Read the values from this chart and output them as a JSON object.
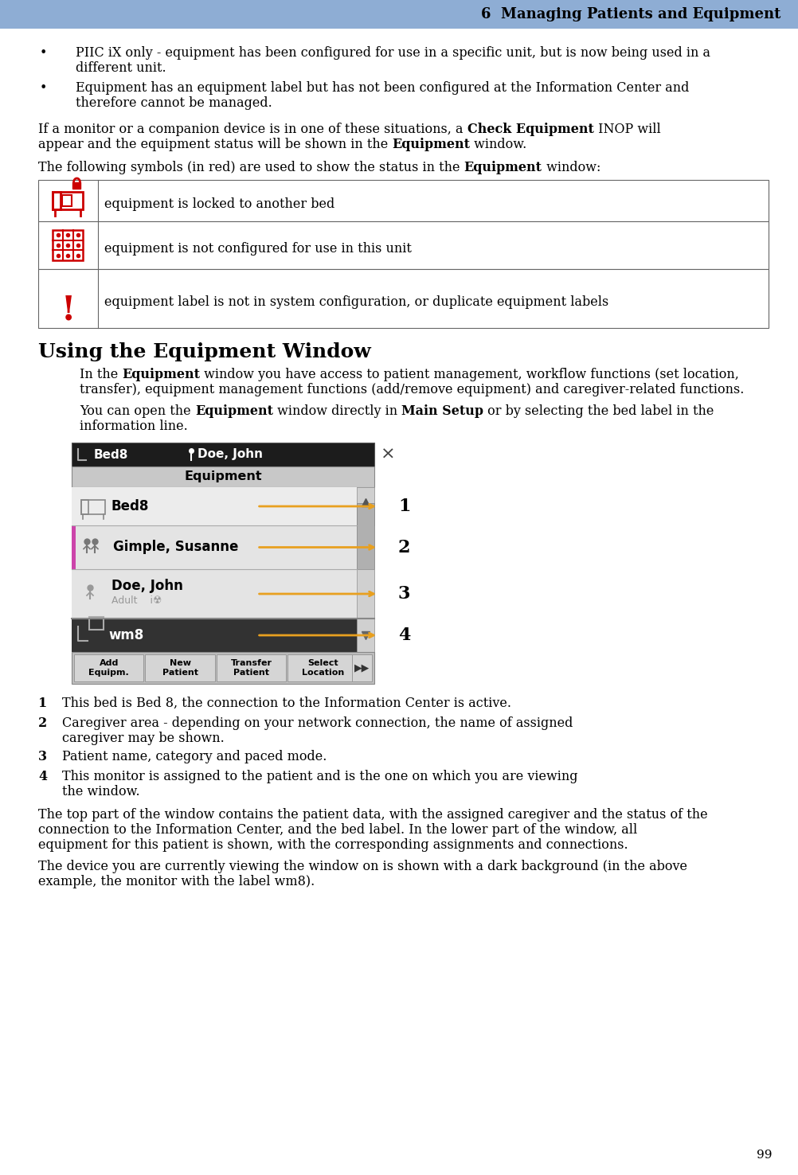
{
  "header_text": "6  Managing Patients and Equipment",
  "header_bg": "#8EADD4",
  "page_bg": "#FFFFFF",
  "bullet1_line1": "PIIC iX only - equipment has been configured for use in a specific unit, but is now being used in a",
  "bullet1_line2": "different unit.",
  "bullet2_line1": "Equipment has an equipment label but has not been configured at the Information Center and",
  "bullet2_line2": "therefore cannot be managed.",
  "table_rows": [
    "equipment is locked to another bed",
    "equipment is not configured for use in this unit",
    "equipment label is not in system configuration, or duplicate equipment labels"
  ],
  "section_title": "Using the Equipment Window",
  "note1_num": "1",
  "note1_text": "This bed is Bed 8, the connection to the Information Center is active.",
  "note2_num": "2",
  "note2_text": "Caregiver area - depending on your network connection, the name of assigned caregiver may be shown.",
  "note3_num": "3",
  "note3_text": "Patient name, category and paced mode.",
  "note4_num": "4",
  "note4_text": "This monitor is assigned to the patient and is the one on which you are viewing the window.",
  "bottom_para1_l1": "The top part of the window contains the patient data, with the assigned caregiver and the status of the",
  "bottom_para1_l2": "connection to the Information Center, and the bed label. In the lower part of the window, all",
  "bottom_para1_l3": "equipment for this patient is shown, with the corresponding assignments and connections.",
  "bottom_para2_l1": "The device you are currently viewing the window on is shown with a dark background (in the above",
  "bottom_para2_l2": "example, the monitor with the label wm8).",
  "page_number": "99",
  "red_color": "#CC0000",
  "orange_color": "#E8A020"
}
